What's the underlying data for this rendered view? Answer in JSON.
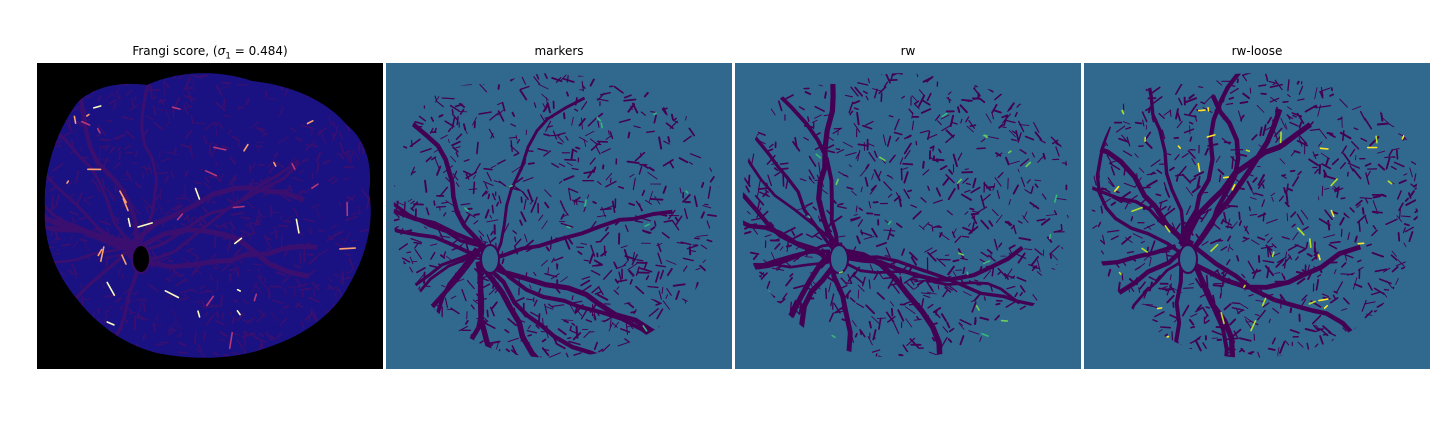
{
  "figure": {
    "panels": [
      {
        "title_prefix": "Frangi score, (",
        "title_sigma": "σ",
        "title_sub": "1",
        "title_suffix": " = 0.484)",
        "background_color": "#000000",
        "region_color": "#1a1282",
        "vessel_color": "#3b0f70",
        "highlight_colors": [
          "#b73779",
          "#fcfdbf",
          "#fe9f6d"
        ]
      },
      {
        "title": "markers",
        "background_color": "#31688e",
        "region_color": "#31688e",
        "vessel_color": "#440154",
        "highlight_colors": [
          "#35b779"
        ]
      },
      {
        "title": "rw",
        "background_color": "#31688e",
        "region_color": "#31688e",
        "vessel_color": "#440154",
        "highlight_colors": [
          "#35b779",
          "#6ece58"
        ]
      },
      {
        "title": "rw-loose",
        "background_color": "#31688e",
        "region_color": "#31688e",
        "vessel_color": "#440154",
        "highlight_colors": [
          "#b5de2b",
          "#fde725"
        ]
      }
    ]
  }
}
